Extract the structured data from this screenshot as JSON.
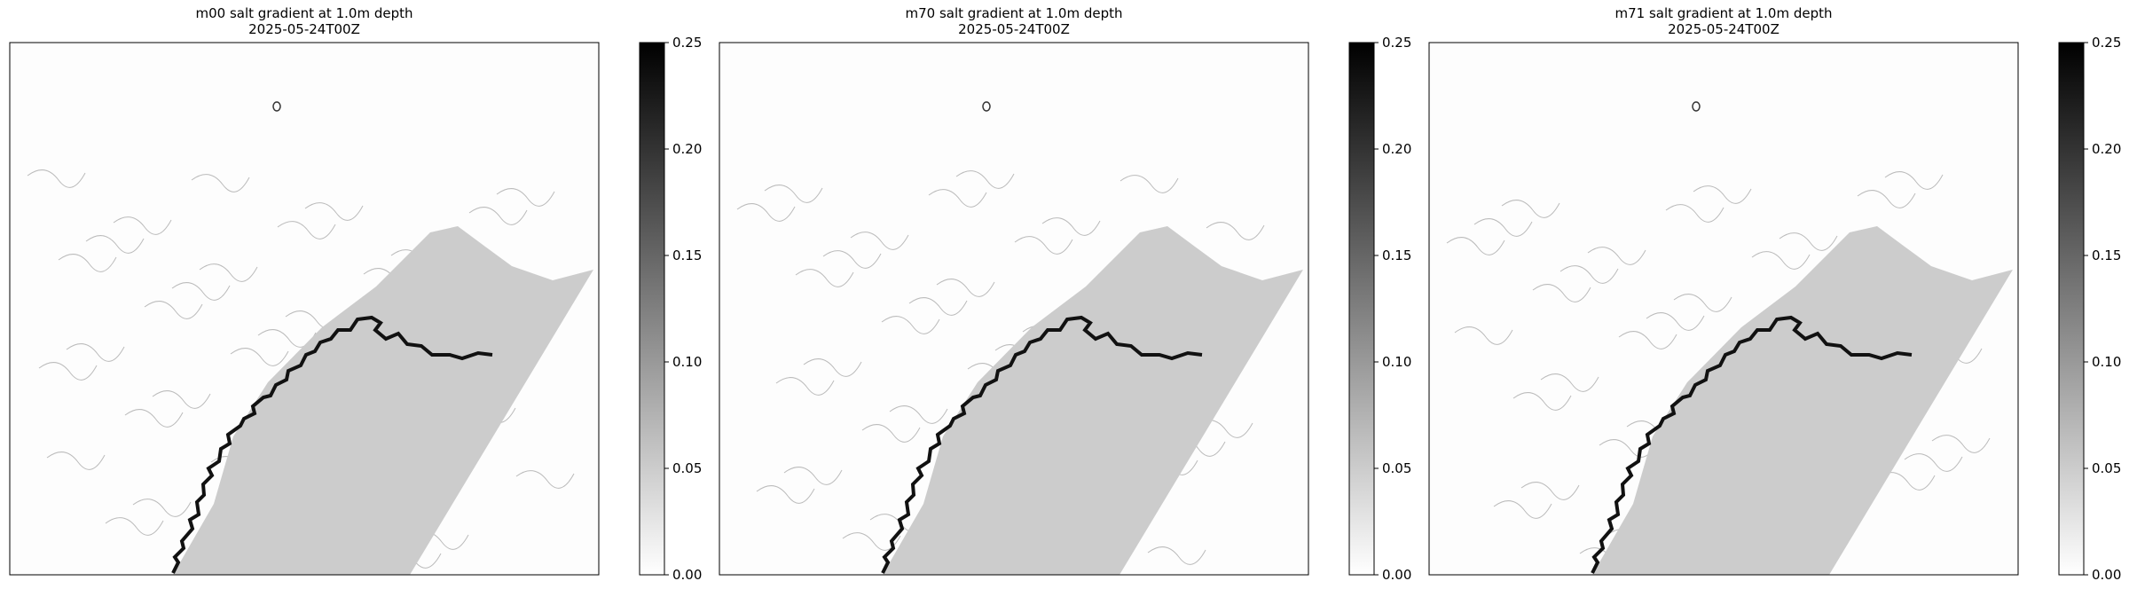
{
  "panels": [
    {
      "title": "m00 salt gradient at 1.0m depth",
      "subtitle": "2025-05-24T00Z",
      "clim": [
        0,
        0.25
      ],
      "ticks": [
        {
          "value": 0,
          "label": "0.00"
        },
        {
          "value": 0.05,
          "label": "0.05"
        },
        {
          "value": 0.1,
          "label": "0.10"
        },
        {
          "value": 0.15,
          "label": "0.15"
        },
        {
          "value": 0.2,
          "label": "0.20"
        },
        {
          "value": 0.25,
          "label": "0.25"
        }
      ]
    },
    {
      "title": "m70 salt gradient at 1.0m depth",
      "subtitle": "2025-05-24T00Z",
      "clim": [
        0,
        0.25
      ],
      "ticks": [
        {
          "value": 0,
          "label": "0.00"
        },
        {
          "value": 0.05,
          "label": "0.05"
        },
        {
          "value": 0.1,
          "label": "0.10"
        },
        {
          "value": 0.15,
          "label": "0.15"
        },
        {
          "value": 0.2,
          "label": "0.20"
        },
        {
          "value": 0.25,
          "label": "0.25"
        }
      ]
    },
    {
      "title": "m71 salt gradient at 1.0m depth",
      "subtitle": "2025-05-24T00Z",
      "clim": [
        0,
        0.25
      ],
      "ticks": [
        {
          "value": 0,
          "label": "0.00"
        },
        {
          "value": 0.05,
          "label": "0.05"
        },
        {
          "value": 0.1,
          "label": "0.10"
        },
        {
          "value": 0.15,
          "label": "0.15"
        },
        {
          "value": 0.2,
          "label": "0.20"
        },
        {
          "value": 0.25,
          "label": "0.25"
        }
      ]
    }
  ]
}
